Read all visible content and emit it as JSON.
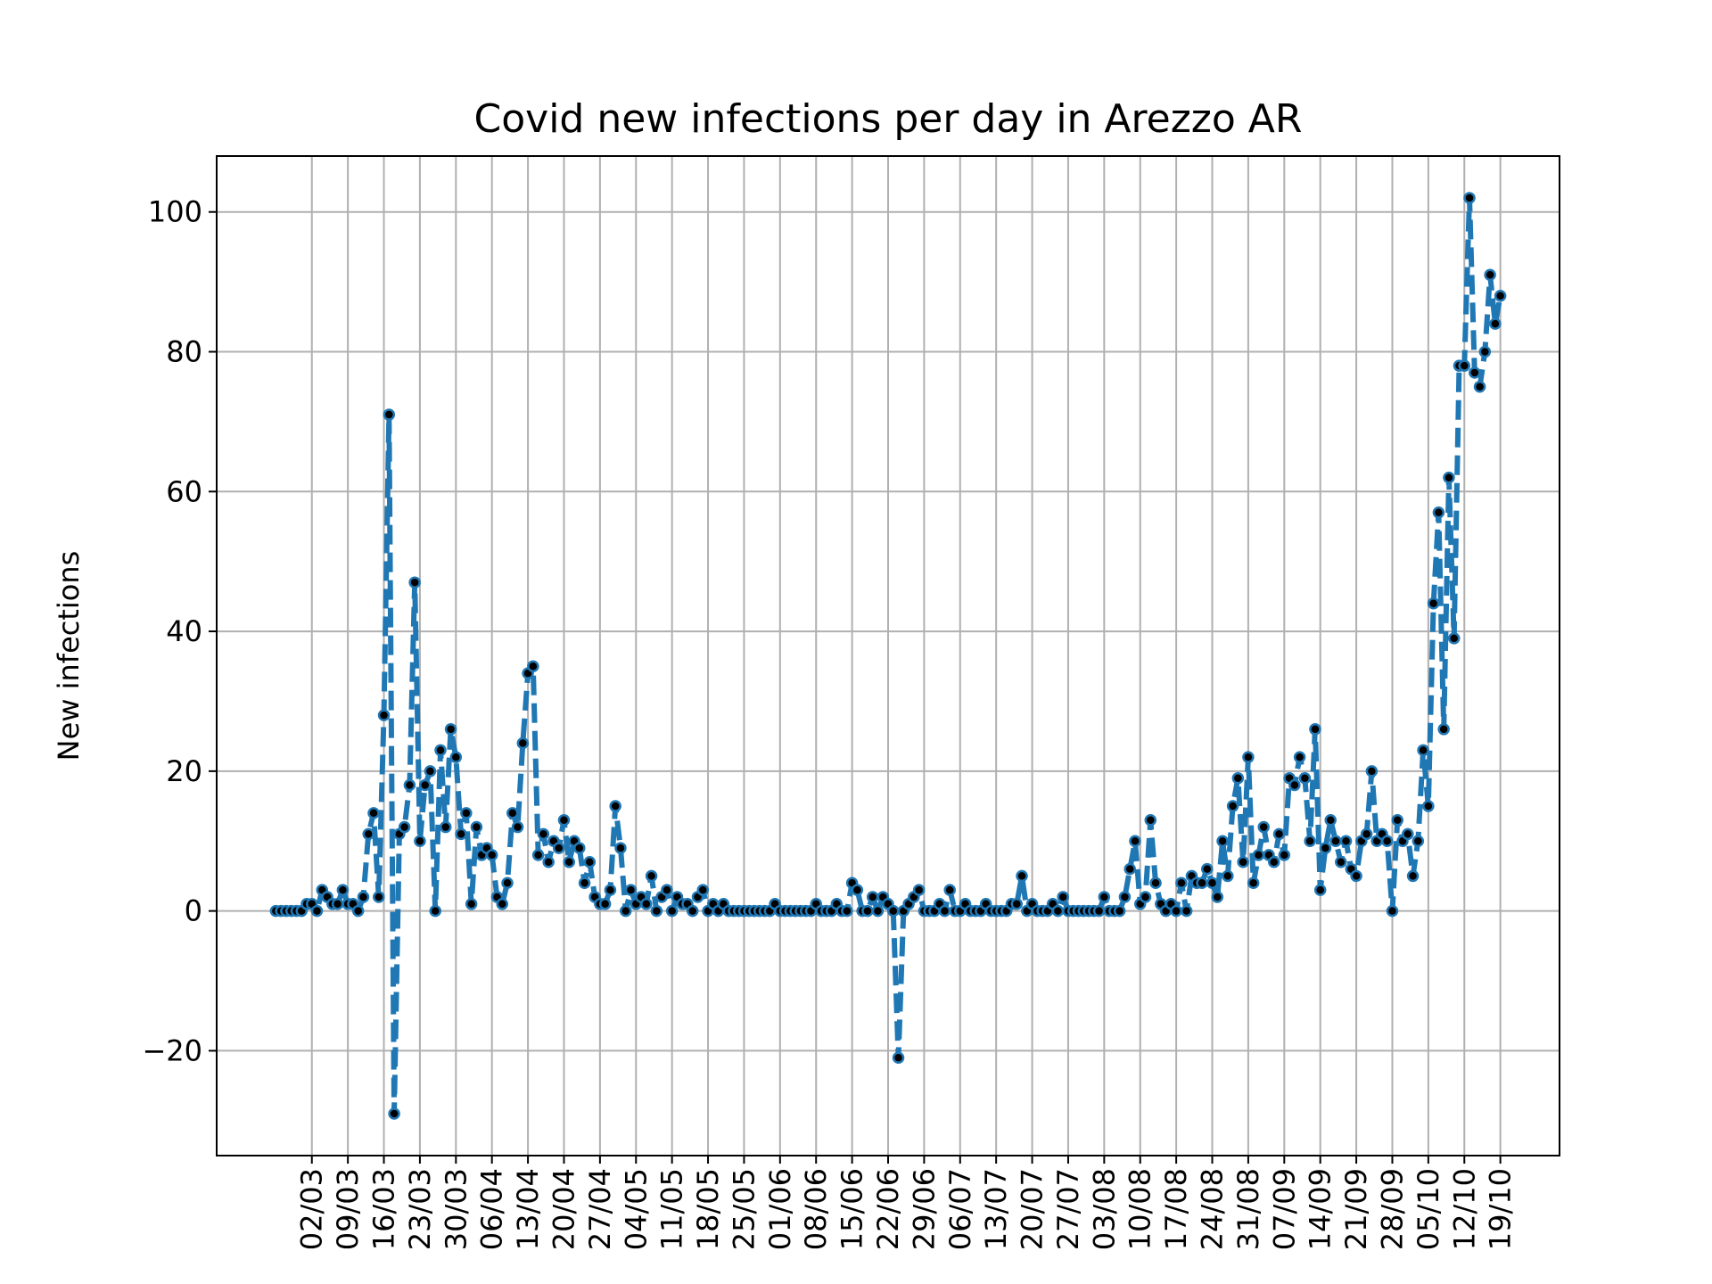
{
  "chart_data": {
    "type": "line",
    "title": "Covid new infections per day in Arezzo AR",
    "xlabel": "",
    "ylabel": "New infections",
    "ylim": [
      -35,
      108
    ],
    "yticks": [
      -20,
      0,
      20,
      40,
      60,
      80,
      100
    ],
    "ytick_labels": [
      "−20",
      "0",
      "20",
      "40",
      "60",
      "80",
      "100"
    ],
    "start_date": "2020-02-24",
    "end_date": "2020-10-19",
    "xticks": [
      "02/03",
      "09/03",
      "16/03",
      "23/03",
      "30/03",
      "06/04",
      "13/04",
      "20/04",
      "27/04",
      "04/05",
      "11/05",
      "18/05",
      "25/05",
      "01/06",
      "08/06",
      "15/06",
      "22/06",
      "29/06",
      "06/07",
      "13/07",
      "20/07",
      "27/07",
      "03/08",
      "10/08",
      "17/08",
      "24/08",
      "31/08",
      "07/09",
      "14/09",
      "21/09",
      "28/09",
      "05/10",
      "12/10",
      "19/10"
    ],
    "grid": true,
    "line_color": "#1f77b4",
    "marker_color": "#000000",
    "series": [
      {
        "values": [
          0,
          0,
          0,
          0,
          0,
          0,
          1,
          1,
          0,
          3,
          2,
          1,
          1,
          3,
          1,
          1,
          0,
          2,
          11,
          14,
          2,
          28,
          71,
          -29,
          11,
          12,
          18,
          47,
          10,
          18,
          20,
          0,
          23,
          12,
          26,
          22,
          11,
          14,
          1,
          12,
          8,
          9,
          8,
          2,
          1,
          4,
          14,
          12,
          24,
          34,
          35,
          8,
          11,
          7,
          10,
          9,
          13,
          7,
          10,
          9,
          4,
          7,
          2,
          1,
          1,
          3,
          15,
          9,
          0,
          3,
          1,
          2,
          1,
          5,
          0,
          2,
          3,
          0,
          2,
          1,
          1,
          0,
          2,
          3,
          0,
          1,
          0,
          1,
          0,
          0,
          0,
          0,
          0,
          0,
          0,
          0,
          0,
          1,
          0,
          0,
          0,
          0,
          0,
          0,
          0,
          1,
          0,
          0,
          0,
          1,
          0,
          0,
          4,
          3,
          0,
          0,
          2,
          0,
          2,
          1,
          0,
          -21,
          0,
          1,
          2,
          3,
          0,
          0,
          0,
          1,
          0,
          3,
          0,
          0,
          1,
          0,
          0,
          0,
          1,
          0,
          0,
          0,
          0,
          1,
          1,
          5,
          0,
          1,
          0,
          0,
          0,
          1,
          0,
          2,
          0,
          0,
          0,
          0,
          0,
          0,
          0,
          2,
          0,
          0,
          0,
          2,
          6,
          10,
          1,
          2,
          13,
          4,
          1,
          0,
          1,
          0,
          4,
          0,
          5,
          4,
          4,
          6,
          4,
          2,
          10,
          5,
          15,
          19,
          7,
          22,
          4,
          8,
          12,
          8,
          7,
          11,
          8,
          19,
          18,
          22,
          19,
          10,
          26,
          3,
          9,
          13,
          10,
          7,
          10,
          6,
          5,
          10,
          11,
          20,
          10,
          11,
          10,
          0,
          13,
          10,
          11,
          5,
          10,
          23,
          15,
          44,
          57,
          26,
          62,
          39,
          78,
          78,
          102,
          77,
          75,
          80,
          91,
          84,
          88
        ]
      }
    ]
  }
}
